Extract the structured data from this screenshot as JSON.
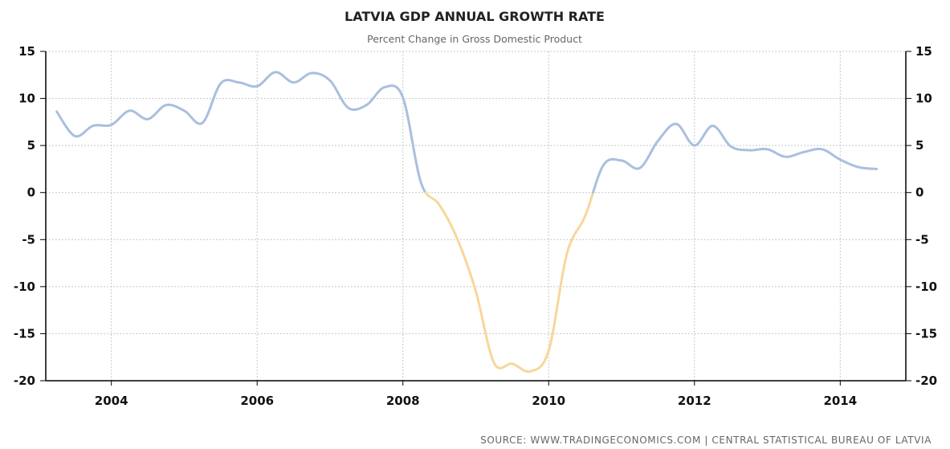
{
  "chart_data": {
    "type": "line",
    "title": "LATVIA GDP ANNUAL GROWTH RATE",
    "subtitle": "Percent Change in Gross Domestic Product",
    "source": "SOURCE: WWW.TRADINGECONOMICS.COM | CENTRAL STATISTICAL BUREAU OF LATVIA",
    "xlabel": "",
    "ylabel": "",
    "xlim": [
      2003.1,
      2014.9
    ],
    "ylim": [
      -20,
      15
    ],
    "yticks": [
      15,
      10,
      5,
      0,
      -5,
      -10,
      -15,
      -20
    ],
    "xticks": [
      2004,
      2006,
      2008,
      2010,
      2012,
      2014
    ],
    "ytick_labels": [
      "15",
      "10",
      "5",
      "0",
      "-5",
      "-10",
      "-15",
      "-20"
    ],
    "xtick_labels": [
      "2004",
      "2006",
      "2008",
      "2010",
      "2012",
      "2014"
    ],
    "grid": true,
    "axes": "left-and-right",
    "colors": {
      "positive": "#a9bfdf",
      "negative": "#f7d79a",
      "grid": "#c8c8c8",
      "axis": "#000000"
    },
    "series": [
      {
        "x": [
          2003.25,
          2003.5,
          2003.75,
          2004.0,
          2004.25,
          2004.5,
          2004.75,
          2005.0,
          2005.25,
          2005.5,
          2005.75,
          2006.0,
          2006.25,
          2006.5,
          2006.75,
          2007.0,
          2007.25,
          2007.5,
          2007.75,
          2008.0,
          2008.25,
          2008.5,
          2008.75,
          2009.0,
          2009.25,
          2009.5,
          2009.75,
          2010.0,
          2010.25,
          2010.5,
          2010.75,
          2011.0,
          2011.25,
          2011.5,
          2011.75,
          2012.0,
          2012.25,
          2012.5,
          2012.75,
          2013.0,
          2013.25,
          2013.5,
          2013.75,
          2014.0,
          2014.25,
          2014.5
        ],
        "y": [
          8.6,
          6.0,
          7.1,
          7.2,
          8.7,
          7.8,
          9.3,
          8.7,
          7.4,
          11.6,
          11.7,
          11.3,
          12.8,
          11.7,
          12.7,
          11.9,
          9.0,
          9.3,
          11.2,
          10.1,
          1.0,
          -1.3,
          -5.0,
          -10.5,
          -18.1,
          -18.2,
          -19.0,
          -16.8,
          -6.5,
          -2.5,
          2.9,
          3.4,
          2.6,
          5.5,
          7.3,
          5.0,
          7.1,
          4.9,
          4.5,
          4.6,
          3.8,
          4.3,
          4.6,
          3.5,
          2.7,
          2.5
        ]
      }
    ]
  }
}
